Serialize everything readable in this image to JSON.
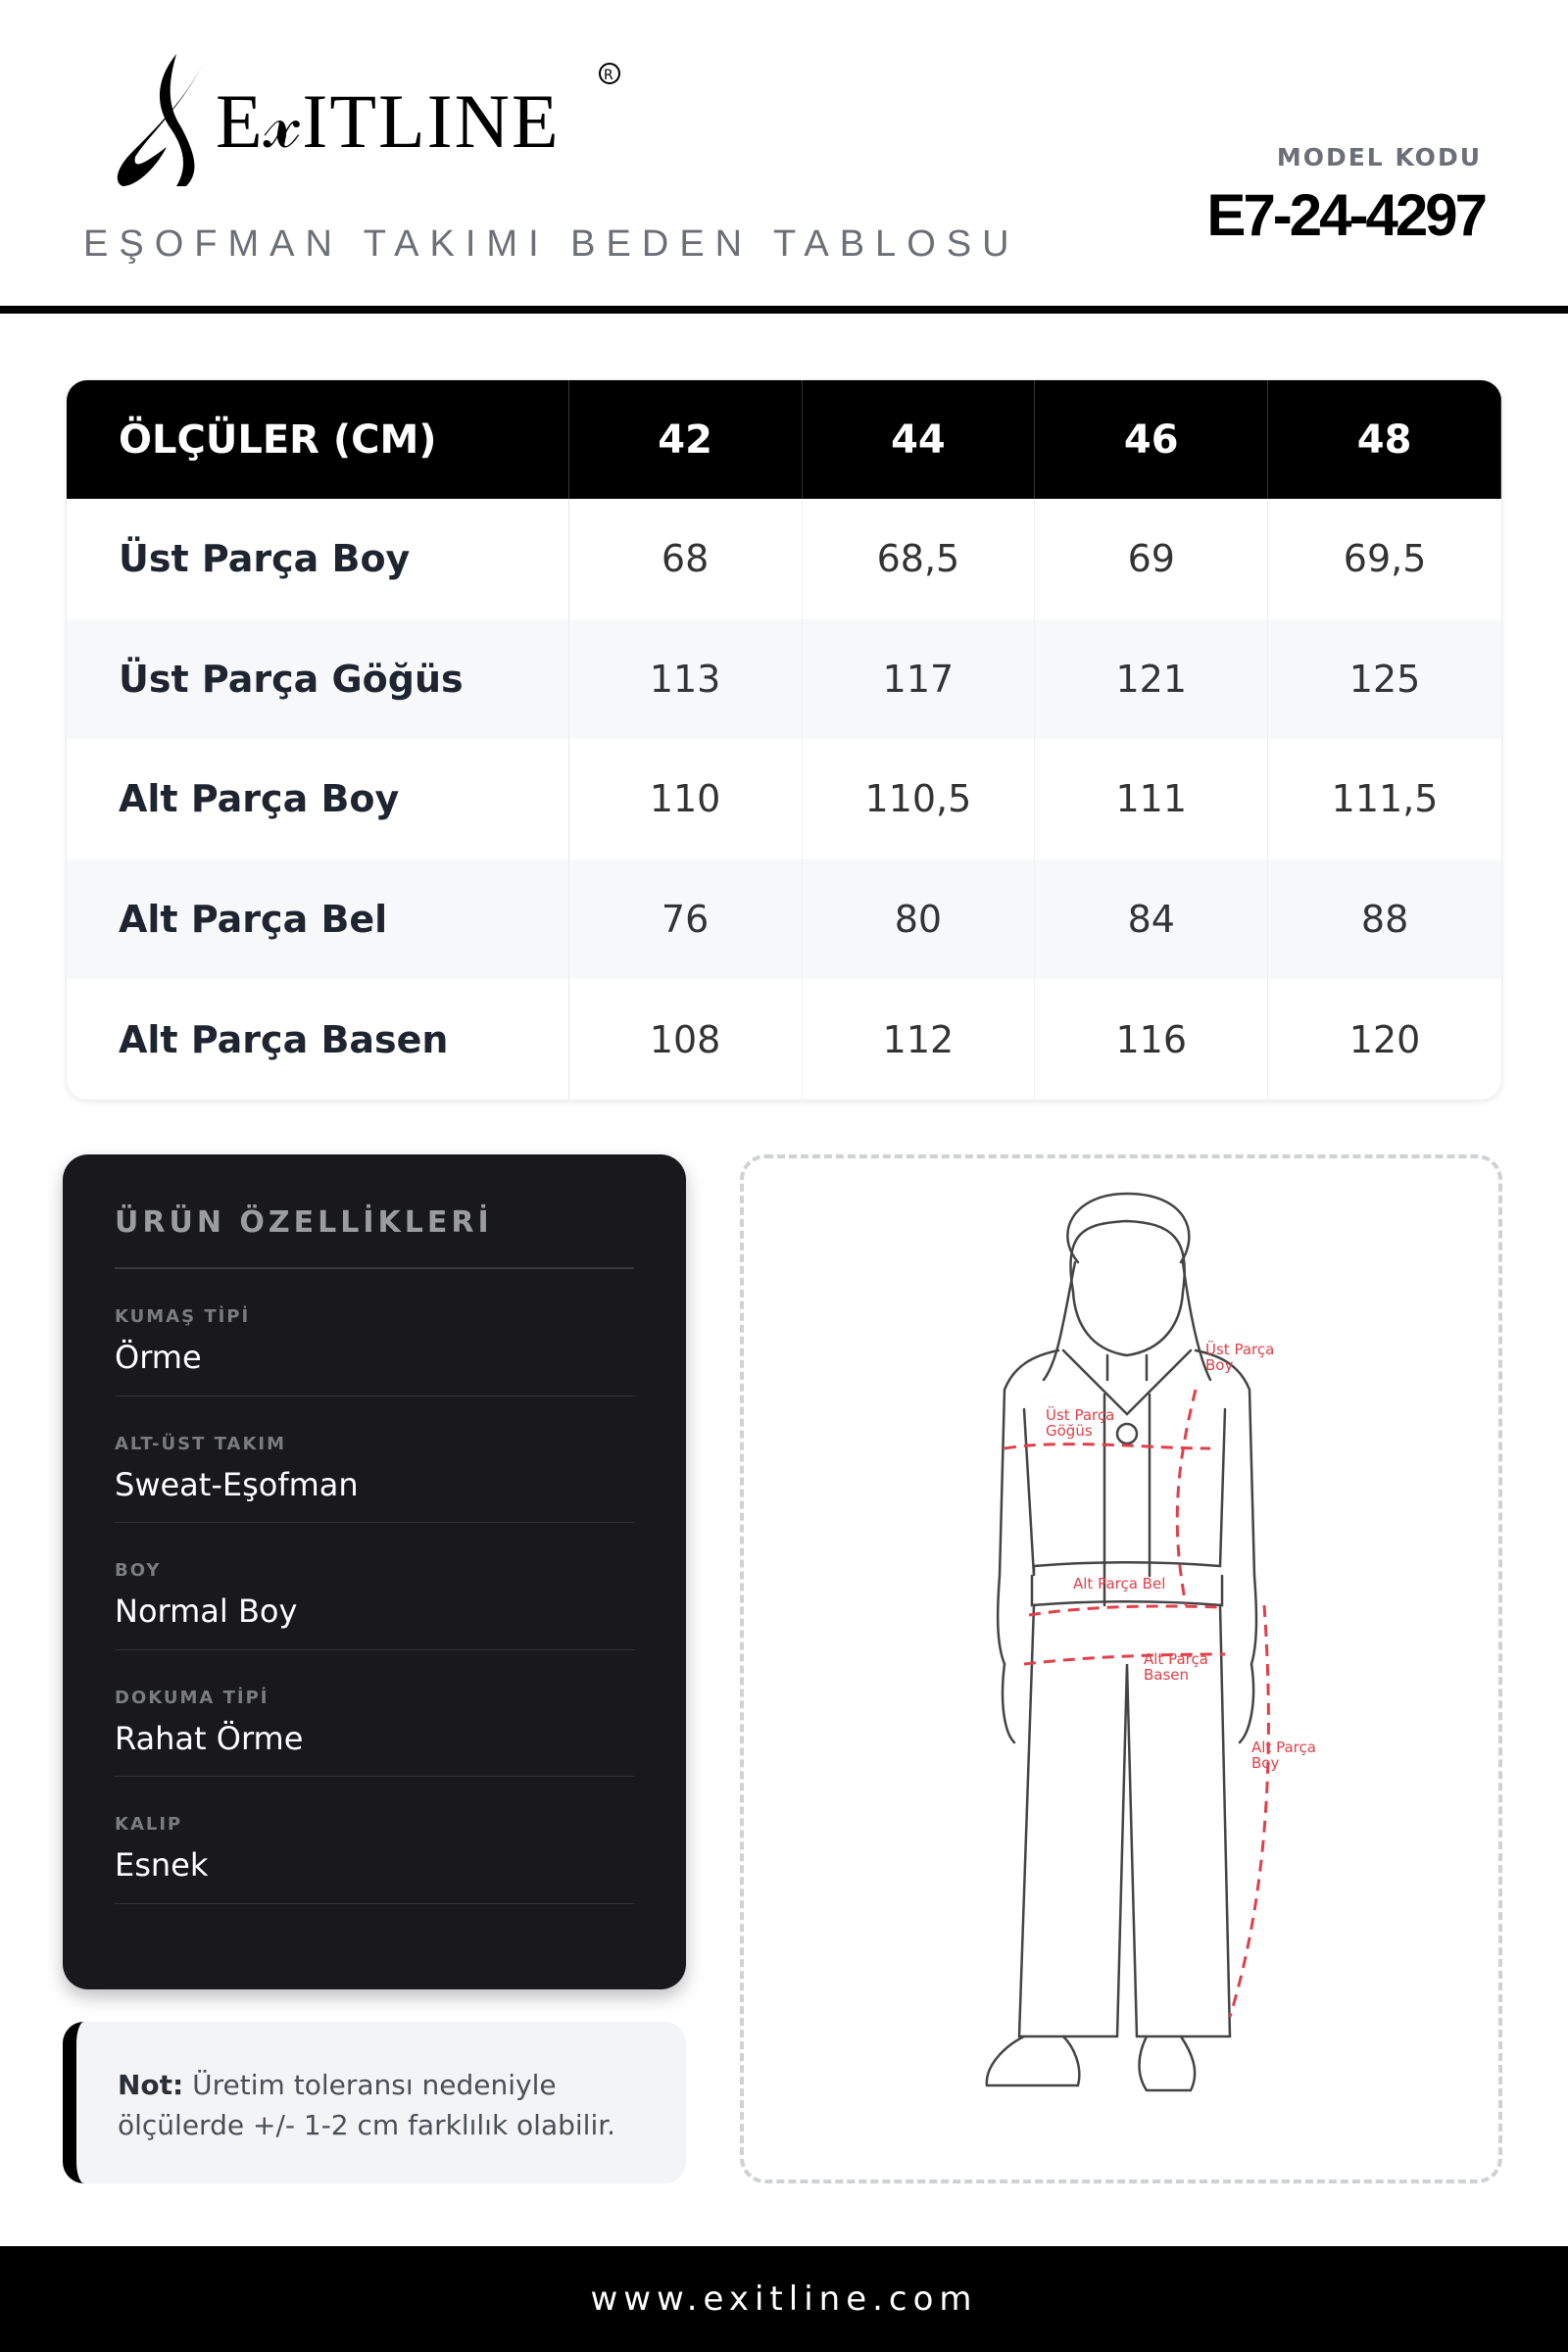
{
  "brand": {
    "logo_text": "EXITLINE",
    "registered": "®"
  },
  "header": {
    "subtitle": "EŞOFMAN TAKIMI BEDEN TABLOSU",
    "model_label": "MODEL KODU",
    "model_code": "E7-24-4297"
  },
  "size_table": {
    "header": [
      "ÖLÇÜLER (CM)",
      "42",
      "44",
      "46",
      "48"
    ],
    "rows": [
      [
        "Üst Parça Boy",
        "68",
        "68,5",
        "69",
        "69,5"
      ],
      [
        "Üst Parça Göğüs",
        "113",
        "117",
        "121",
        "125"
      ],
      [
        "Alt Parça Boy",
        "110",
        "110,5",
        "111",
        "111,5"
      ],
      [
        "Alt Parça Bel",
        "76",
        "80",
        "84",
        "88"
      ],
      [
        "Alt Parça Basen",
        "108",
        "112",
        "116",
        "120"
      ]
    ]
  },
  "specs": {
    "title": "ÜRÜN ÖZELLİKLERİ",
    "items": [
      {
        "label": "KUMAŞ TİPİ",
        "value": "Örme"
      },
      {
        "label": "ALT-ÜST TAKIM",
        "value": "Sweat-Eşofman"
      },
      {
        "label": "BOY",
        "value": "Normal Boy"
      },
      {
        "label": "DOKUMA TİPİ",
        "value": "Rahat Örme"
      },
      {
        "label": "KALIP",
        "value": "Esnek"
      }
    ]
  },
  "note": {
    "label": "Not:",
    "text": " Üretim toleransı nedeniyle ölçülerde +/- 1-2 cm farklılık olabilir."
  },
  "figure": {
    "accent_color": "#e0404a",
    "labels": {
      "ust_boy": [
        "Üst Parça",
        "Boy"
      ],
      "ust_gogus": [
        "Üst Parça",
        "Göğüs"
      ],
      "alt_bel": "Alt Parça Bel",
      "alt_basen": [
        "Alt Parça",
        "Basen"
      ],
      "alt_boy": [
        "Alt Parça",
        "Boy"
      ]
    }
  },
  "footer": {
    "url": "www.exitline.com"
  }
}
